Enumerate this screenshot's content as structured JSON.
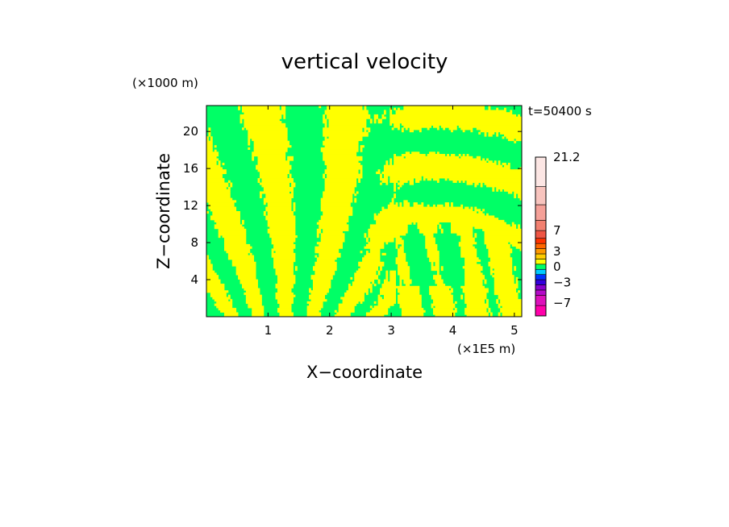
{
  "chart_data": {
    "type": "heatmap",
    "title": "vertical velocity",
    "xlabel": "X−coordinate",
    "ylabel": "Z−coordinate",
    "x_unit": "(×1E5 m)",
    "y_unit": "(×1000 m)",
    "time_label": "t=50400 s",
    "xlim": [
      0,
      5.12
    ],
    "ylim": [
      0,
      22.8
    ],
    "x_ticks": [
      1,
      2,
      3,
      4,
      5
    ],
    "x_tick_labels": [
      "1",
      "2",
      "3",
      "4",
      "5"
    ],
    "y_ticks": [
      4,
      8,
      12,
      16,
      20
    ],
    "y_tick_labels": [
      "4",
      "8",
      "12",
      "16",
      "20"
    ],
    "field_colors": {
      "positive": "#ffff00",
      "negative": "#00ff66"
    },
    "colorbar": {
      "min": -9.5,
      "max": 21.2,
      "levels": [
        {
          "from": -9.5,
          "to": -7.5,
          "color": "#ff00aa"
        },
        {
          "from": -7.5,
          "to": -5.5,
          "color": "#dd11bb"
        },
        {
          "from": -5.5,
          "to": -4.5,
          "color": "#b40ac8"
        },
        {
          "from": -4.5,
          "to": -3.5,
          "color": "#8800cc"
        },
        {
          "from": -3.5,
          "to": -2.5,
          "color": "#3300dd"
        },
        {
          "from": -2.5,
          "to": -1.5,
          "color": "#0033ff"
        },
        {
          "from": -1.5,
          "to": -0.5,
          "color": "#00ccff"
        },
        {
          "from": -0.5,
          "to": 0.5,
          "color": "#00ff66"
        },
        {
          "from": 0.5,
          "to": 1.5,
          "color": "#ffff00"
        },
        {
          "from": 1.5,
          "to": 2.5,
          "color": "#ffcc00"
        },
        {
          "from": 2.5,
          "to": 3.5,
          "color": "#ff9900"
        },
        {
          "from": 3.5,
          "to": 4.5,
          "color": "#ff6600"
        },
        {
          "from": 4.5,
          "to": 5.5,
          "color": "#ff3300"
        },
        {
          "from": 5.5,
          "to": 7.0,
          "color": "#ee5544"
        },
        {
          "from": 7.0,
          "to": 9.0,
          "color": "#f28070"
        },
        {
          "from": 9.0,
          "to": 12.0,
          "color": "#f5a098"
        },
        {
          "from": 12.0,
          "to": 15.5,
          "color": "#f8c4be"
        },
        {
          "from": 15.5,
          "to": 21.2,
          "color": "#fce6e4"
        }
      ],
      "tick_values": [
        21.2,
        7,
        3,
        0,
        -3,
        -7
      ],
      "tick_labels": [
        "21.2",
        "7",
        "3",
        "0",
        "−3",
        "−7"
      ]
    }
  }
}
